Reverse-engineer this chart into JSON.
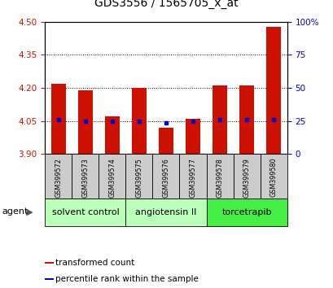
{
  "title": "GDS3556 / 1565705_x_at",
  "samples": [
    "GSM399572",
    "GSM399573",
    "GSM399574",
    "GSM399575",
    "GSM399576",
    "GSM399577",
    "GSM399578",
    "GSM399579",
    "GSM399580"
  ],
  "bar_values": [
    4.22,
    4.19,
    4.07,
    4.2,
    4.02,
    4.06,
    4.21,
    4.21,
    4.475
  ],
  "base_value": 3.9,
  "percentile_values": [
    4.055,
    4.05,
    4.05,
    4.05,
    4.043,
    4.05,
    4.055,
    4.055,
    4.058
  ],
  "ylim": [
    3.9,
    4.5
  ],
  "yticks_left": [
    3.9,
    4.05,
    4.2,
    4.35,
    4.5
  ],
  "yticks_right": [
    0,
    25,
    50,
    75,
    100
  ],
  "bar_color": "#cc1100",
  "percentile_color": "#0000cc",
  "groups": [
    {
      "label": "solvent control",
      "indices": [
        0,
        1,
        2
      ],
      "color": "#bbffbb"
    },
    {
      "label": "angiotensin II",
      "indices": [
        3,
        4,
        5
      ],
      "color": "#bbffbb"
    },
    {
      "label": "torcetrapib",
      "indices": [
        6,
        7,
        8
      ],
      "color": "#44ee44"
    }
  ],
  "agent_label": "agent",
  "legend_items": [
    {
      "label": "transformed count",
      "color": "#cc1100"
    },
    {
      "label": "percentile rank within the sample",
      "color": "#0000cc"
    }
  ],
  "plot_bg": "#ffffff",
  "sample_bg": "#cccccc",
  "title_fontsize": 10
}
